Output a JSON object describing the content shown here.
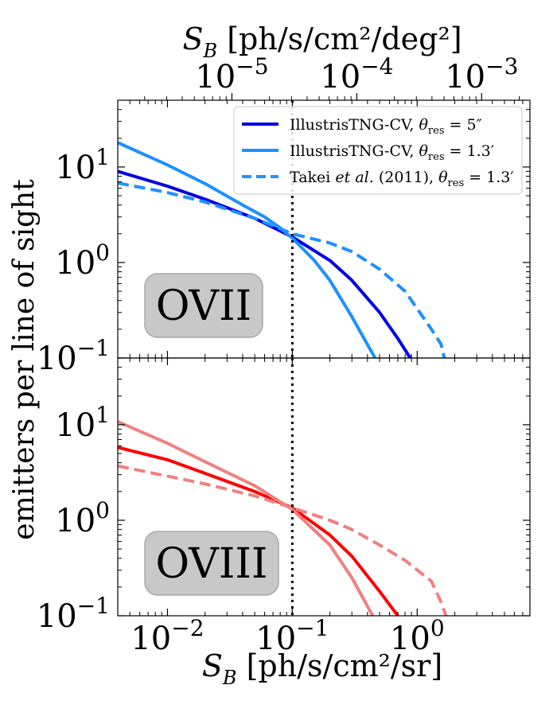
{
  "chart_data": {
    "type": "line",
    "x_scale": "log",
    "y_scale": "log",
    "xlabel": "S_B [ph/s/cm²/sr]",
    "xlabel_main": "S",
    "xlabel_sub": "B",
    "xlabel_units": " [ph/s/cm²/sr]",
    "top_xlabel": "S_B [ph/s/cm²/deg²]",
    "top_xlabel_main": "S",
    "top_xlabel_sub": "B",
    "top_xlabel_units": " [ph/s/cm²/deg²]",
    "ylabel": "emitters per line of sight",
    "xlim": [
      0.004,
      8.0
    ],
    "top_axis_factor_sr_per_deg2": 0.0003046,
    "top_ticks": [
      {
        "value": 1e-05,
        "base": "10",
        "exp": "−5"
      },
      {
        "value": 0.0001,
        "base": "10",
        "exp": "−4"
      },
      {
        "value": 0.001,
        "base": "10",
        "exp": "−3"
      }
    ],
    "x_ticks": [
      {
        "value": 0.01,
        "base": "10",
        "exp": "−2"
      },
      {
        "value": 0.1,
        "base": "10",
        "exp": "−1"
      },
      {
        "value": 1.0,
        "base": "10",
        "exp": "0"
      }
    ],
    "y_ticks": [
      {
        "value": 0.1,
        "base": "10",
        "exp": "−1"
      },
      {
        "value": 1.0,
        "base": "10",
        "exp": "0"
      },
      {
        "value": 10.0,
        "base": "10",
        "exp": "1"
      }
    ],
    "threshold_line_x": 0.1,
    "legend": {
      "placement": "top-right of upper panel",
      "entries": [
        {
          "label": "IllustrisTNG-CV, θ_res = 5″",
          "text": "IllustrisTNG-CV, ",
          "theta": "θ",
          "sub": "res",
          "rest": " = 5″",
          "style": "solid",
          "color": "#0000e0"
        },
        {
          "label": "IllustrisTNG-CV, θ_res = 1.3′",
          "text": "IllustrisTNG-CV, ",
          "theta": "θ",
          "sub": "res",
          "rest": " = 1.3′",
          "style": "solid",
          "color": "#1e90ff"
        },
        {
          "label": "Takei et al. (2011), θ_res = 1.3′",
          "text": "Takei ",
          "italic": "et al.",
          "text2": " (2011), ",
          "theta": "θ",
          "sub": "res",
          "rest": " = 1.3′",
          "style": "dashed",
          "color": "#1e90ff"
        }
      ]
    },
    "panels": [
      {
        "label": "OVII",
        "ylim": [
          0.1,
          50
        ],
        "series": [
          {
            "name": "IllustrisTNG-CV, θres = 5″",
            "color": "#0000e0",
            "style": "solid",
            "x": [
              0.004,
              0.01,
              0.02,
              0.05,
              0.1,
              0.2,
              0.3,
              0.5,
              0.7,
              0.88
            ],
            "y": [
              9.0,
              6.3,
              4.6,
              2.9,
              1.85,
              1.05,
              0.65,
              0.3,
              0.16,
              0.1
            ]
          },
          {
            "name": "IllustrisTNG-CV, θres = 1.3′",
            "color": "#1e90ff",
            "style": "solid",
            "x": [
              0.004,
              0.01,
              0.02,
              0.04,
              0.06,
              0.08,
              0.1,
              0.15,
              0.2,
              0.3,
              0.46
            ],
            "y": [
              18.0,
              10.5,
              6.7,
              4.0,
              3.0,
              2.3,
              1.8,
              1.05,
              0.65,
              0.27,
              0.1
            ]
          },
          {
            "name": "Takei et al. (2011), θres = 1.3′",
            "color": "#1e90ff",
            "style": "dashed",
            "x": [
              0.004,
              0.01,
              0.02,
              0.05,
              0.1,
              0.2,
              0.3,
              0.5,
              0.8,
              1.3,
              1.55,
              1.65
            ],
            "y": [
              6.8,
              5.4,
              4.3,
              2.9,
              2.0,
              1.6,
              1.3,
              0.85,
              0.5,
              0.2,
              0.14,
              0.1
            ]
          }
        ]
      },
      {
        "label": "OVIII",
        "ylim": [
          0.1,
          50
        ],
        "series": [
          {
            "name": "IllustrisTNG-CV, θres = 5″",
            "color": "#ff0000",
            "style": "solid",
            "x": [
              0.004,
              0.01,
              0.02,
              0.05,
              0.1,
              0.2,
              0.3,
              0.5,
              0.7
            ],
            "y": [
              5.8,
              4.3,
              3.1,
              2.0,
              1.35,
              0.7,
              0.42,
              0.18,
              0.1
            ]
          },
          {
            "name": "IllustrisTNG-CV, θres = 1.3′",
            "color": "#f08080",
            "style": "solid",
            "x": [
              0.004,
              0.01,
              0.02,
              0.05,
              0.1,
              0.2,
              0.3,
              0.44
            ],
            "y": [
              10.8,
              6.4,
              4.1,
              2.3,
              1.3,
              0.55,
              0.25,
              0.1
            ]
          },
          {
            "name": "Takei et al. (2011), θres = 1.3′",
            "color": "#f08080",
            "style": "dashed",
            "x": [
              0.004,
              0.01,
              0.02,
              0.05,
              0.1,
              0.2,
              0.3,
              0.5,
              0.8,
              1.3,
              1.55,
              1.7
            ],
            "y": [
              3.7,
              2.9,
              2.4,
              1.8,
              1.35,
              1.0,
              0.8,
              0.55,
              0.38,
              0.23,
              0.14,
              0.1
            ]
          }
        ]
      }
    ]
  }
}
